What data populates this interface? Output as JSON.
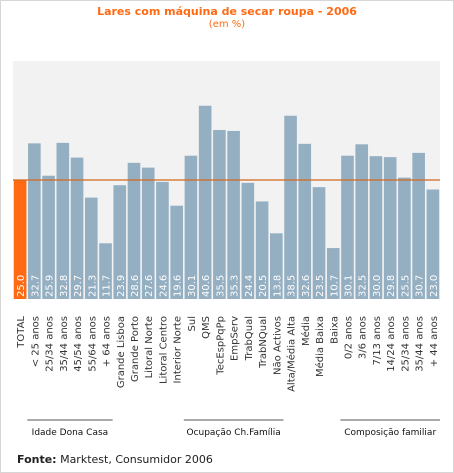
{
  "title": "Lares com máquina de secar roupa - 2006",
  "subtitle": "(em %)",
  "source_label": "Fonte:",
  "source_text": "Marktest, Consumidor 2006",
  "colors": {
    "total_bar": "#ff6a13",
    "bar": "#94aec2",
    "reference_line": "#d2691e",
    "plot_bg": "#f2f2f2",
    "title": "#ff6a13"
  },
  "chart_data": {
    "type": "bar",
    "title": "Lares com máquina de secar roupa - 2006",
    "subtitle": "(em %)",
    "ylim": [
      0,
      50
    ],
    "grid": false,
    "reference_line": 25.0,
    "categories": [
      "TOTAL",
      "< 25 anos",
      "25/34 anos",
      "35/44 anos",
      "45/54 anos",
      "55/64 anos",
      "+ 64 anos",
      "Grande Lisboa",
      "Grande Porto",
      "Litoral Norte",
      "Litoral Centro",
      "Interior Norte",
      "Sul",
      "QMS",
      "TecEspPqPp",
      "EmpServ",
      "TrabQual",
      "TrabNQual",
      "Não Activos",
      "Alta/Média Alta",
      "Média",
      "Média Baixa",
      "Baixa",
      "0/2 anos",
      "3/6 anos",
      "7/13 anos",
      "14/24 anos",
      "25/34 anos",
      "35/44 anos",
      "+ 44 anos"
    ],
    "values": [
      25.0,
      32.7,
      25.9,
      32.8,
      29.7,
      21.3,
      11.7,
      23.9,
      28.6,
      27.6,
      24.6,
      19.6,
      30.1,
      40.6,
      35.5,
      35.3,
      24.4,
      20.5,
      13.8,
      38.5,
      32.6,
      23.5,
      10.7,
      30.1,
      32.5,
      30.0,
      29.8,
      25.5,
      30.7,
      23.0
    ],
    "value_labels": [
      "25.0",
      "32.7",
      "25.9",
      "32.8",
      "29.7",
      "21.3",
      "11.7",
      "23.9",
      "28.6",
      "27.6",
      "24.6",
      "19.6",
      "30.1",
      "40.6",
      "35.5",
      "35.3",
      "24.4",
      "20.5",
      "13.8",
      "38.5",
      "32.6",
      "23.5",
      "10.7",
      "30.1",
      "32.5",
      "30.0",
      "29.8",
      "25.5",
      "30.7",
      "23.0"
    ],
    "groups": [
      {
        "label": "Idade Dona Casa",
        "from": 1,
        "to": 6
      },
      {
        "label": "Ocupação Ch.Família",
        "from": 12,
        "to": 18
      },
      {
        "label": "Composição familiar",
        "from": 23,
        "to": 29
      }
    ]
  }
}
